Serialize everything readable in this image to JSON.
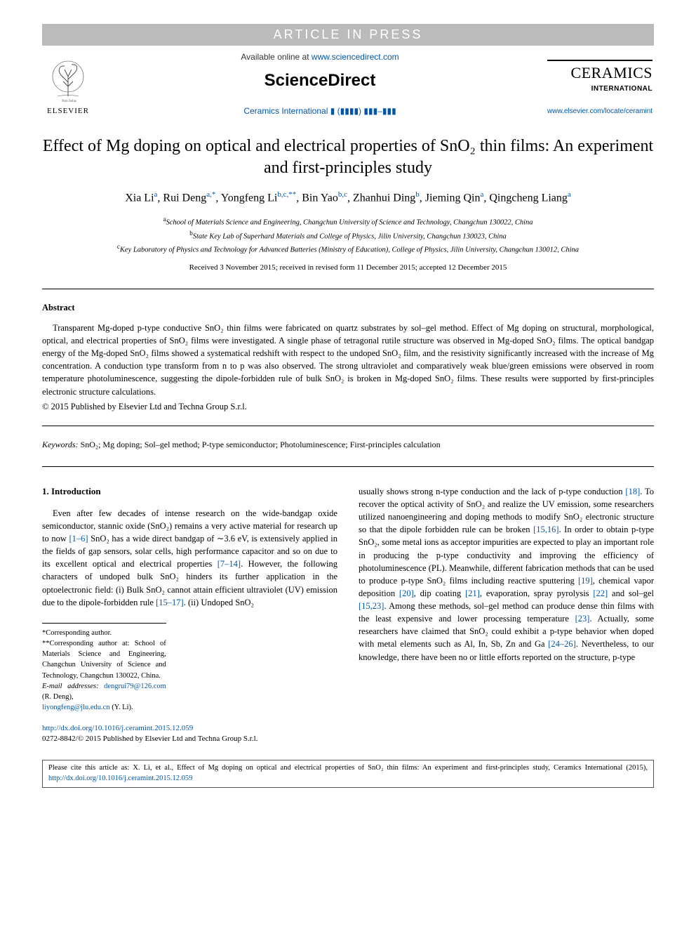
{
  "banner": "ARTICLE IN PRESS",
  "header": {
    "availablePrefix": "Available online at ",
    "availableUrl": "www.sciencedirect.com",
    "brand": "ScienceDirect",
    "journalPrefix": "Ceramics International ",
    "journalIssue": "▮ (▮▮▮▮) ▮▮▮–▮▮▮",
    "elsevierLabel": "ELSEVIER",
    "ceramicsTitle": "CERAMICS",
    "ceramicsSub": "INTERNATIONAL",
    "journalUrl": "www.elsevier.com/locate/ceramint"
  },
  "title": "Effect of Mg doping on optical and electrical properties of SnO₂ thin films: An experiment and first-principles study",
  "authors": [
    {
      "name": "Xia Li",
      "sup": "a"
    },
    {
      "name": "Rui Deng",
      "sup": "a,*"
    },
    {
      "name": "Yongfeng Li",
      "sup": "b,c,**"
    },
    {
      "name": "Bin Yao",
      "sup": "b,c"
    },
    {
      "name": "Zhanhui Ding",
      "sup": "b"
    },
    {
      "name": "Jieming Qin",
      "sup": "a"
    },
    {
      "name": "Qingcheng Liang",
      "sup": "a"
    }
  ],
  "affiliations": [
    {
      "sup": "a",
      "text": "School of Materials Science and Engineering, Changchun University of Science and Technology, Changchun 130022, China"
    },
    {
      "sup": "b",
      "text": "State Key Lab of Superhard Materials and College of Physics, Jilin University, Changchun 130023, China"
    },
    {
      "sup": "c",
      "text": "Key Laboratory of Physics and Technology for Advanced Batteries (Ministry of Education), College of Physics, Jilin University, Changchun 130012, China"
    }
  ],
  "dates": "Received 3 November 2015; received in revised form 11 December 2015; accepted 12 December 2015",
  "abstractHead": "Abstract",
  "abstractBody": "Transparent Mg-doped p-type conductive SnO₂ thin films were fabricated on quartz substrates by sol–gel method. Effect of Mg doping on structural, morphological, optical, and electrical properties of SnO₂ films were investigated. A single phase of tetragonal rutile structure was observed in Mg-doped SnO₂ films. The optical bandgap energy of the Mg-doped SnO₂ films showed a systematical redshift with respect to the undoped SnO₂ film, and the resistivity significantly increased with the increase of Mg concentration. A conduction type transform from n to p was also observed. The strong ultraviolet and comparatively weak blue/green emissions were observed in room temperature photoluminescence, suggesting the dipole-forbidden rule of bulk SnO₂ is broken in Mg-doped SnO₂ films. These results were supported by first-principles electronic structure calculations.",
  "copyright": "© 2015 Published by Elsevier Ltd and Techna Group S.r.l.",
  "keywordsLabel": "Keywords:",
  "keywordsText": " SnO₂; Mg doping; Sol–gel method; P-type semiconductor; Photoluminescence; First-principles calculation",
  "intro": {
    "head": "1.  Introduction",
    "left_part1": "Even after few decades of intense research on the wide-bandgap oxide semiconductor, stannic oxide (SnO₂) remains a very active material for research up to now ",
    "left_ref1": "[1–6]",
    "left_part2": " SnO₂ has a wide direct bandgap of ∼3.6 eV, is extensively applied in the fields of gap sensors, solar cells, high performance capacitor and so on due to its excellent optical and electrical properties ",
    "left_ref2": "[7–14]",
    "left_part3": ". However, the following characters of undoped bulk SnO₂ hinders its further application in the optoelectronic field: (i) Bulk SnO₂ cannot attain efficient ultraviolet (UV) emission due to the dipole-forbidden rule ",
    "left_ref3": "[15–17]",
    "left_part4": ". (ii) Undoped SnO₂",
    "right_part1": "usually shows strong n-type conduction and the lack of p-type conduction ",
    "right_ref1": "[18]",
    "right_part2": ". To recover the optical activity of SnO₂ and realize the UV emission, some researchers utilized nanoengineering and doping methods to modify SnO₂ electronic structure so that the dipole forbidden rule can be broken ",
    "right_ref2": "[15,16]",
    "right_part3": ". In order to obtain p-type SnO₂, some metal ions as acceptor impurities are expected to play an important role in producing the p-type conductivity and improving the efficiency of photoluminescence (PL). Meanwhile, different fabrication methods that can be used to produce p-type SnO₂ films including reactive sputtering ",
    "right_ref3": "[19]",
    "right_part4": ", chemical vapor deposition ",
    "right_ref4": "[20]",
    "right_part5": ", dip coating ",
    "right_ref5": "[21]",
    "right_part6": ", evaporation, spray pyrolysis ",
    "right_ref6": "[22]",
    "right_part7": " and sol–gel ",
    "right_ref7": "[15,23]",
    "right_part8": ". Among these methods, sol–gel method can produce dense thin films with the least expensive and lower processing temperature ",
    "right_ref8": "[23]",
    "right_part9": ". Actually, some researchers have claimed that SnO₂ could exhibit a p-type behavior when doped with metal elements such as Al, In, Sb, Zn and Ga ",
    "right_ref9": "[24–26]",
    "right_part10": ". Nevertheless, to our knowledge, there have been no or little efforts reported on the structure, p-type"
  },
  "footnotes": {
    "corr1": "*Corresponding author.",
    "corr2": "**Corresponding author at: School of Materials Science and Engineering, Changchun University of Science and Technology, Changchun 130022, China.",
    "emailLabel": "E-mail addresses: ",
    "email1": "dengrui79@126.com",
    "email1name": " (R. Deng),",
    "email2": "liyongfeng@jlu.edu.cn",
    "email2name": " (Y. Li)."
  },
  "doi": {
    "url": "http://dx.doi.org/10.1016/j.ceramint.2015.12.059",
    "issn": "0272-8842/© 2015 Published by Elsevier Ltd and Techna Group S.r.l."
  },
  "citebox": {
    "prefix": "Please cite this article as: X. Li, et al., Effect of Mg doping on optical and electrical properties of SnO₂ thin films: An experiment and first-principles study, Ceramics International (2015), ",
    "url": "http://dx.doi.org/10.1016/j.ceramint.2015.12.059"
  },
  "colors": {
    "linkColor": "#0055aa",
    "bannerBg": "#bbbbbb",
    "bannerFg": "#ffffff"
  }
}
